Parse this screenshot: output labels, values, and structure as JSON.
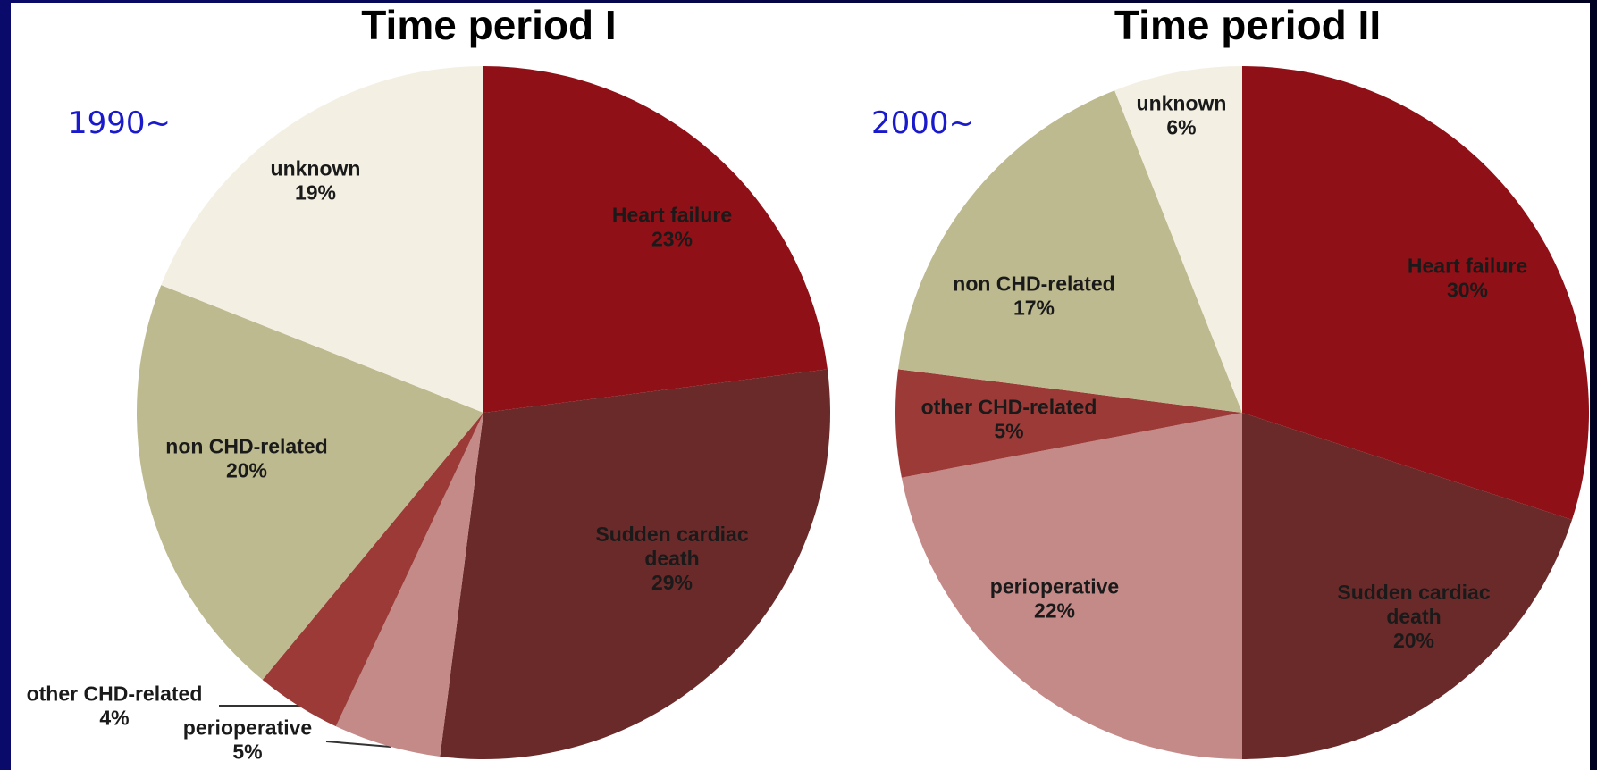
{
  "chart_data": [
    {
      "type": "pie",
      "title": "Time period I",
      "annotation": "1990~",
      "categories": [
        "Heart failure",
        "Sudden cardiac death",
        "perioperative",
        "other CHD-related",
        "non CHD-related",
        "unknown"
      ],
      "values": [
        23,
        29,
        5,
        4,
        20,
        19
      ],
      "value_labels": [
        "23%",
        "29%",
        "5%",
        "4%",
        "20%",
        "19%"
      ],
      "colors": [
        "#8f1016",
        "#6b2a2a",
        "#c48a88",
        "#9b3a37",
        "#bdba8f",
        "#f3f0e3"
      ]
    },
    {
      "type": "pie",
      "title": "Time period II",
      "annotation": "2000~",
      "categories": [
        "Heart failure",
        "Sudden cardiac death",
        "perioperative",
        "other CHD-related",
        "non CHD-related",
        "unknown"
      ],
      "values": [
        30,
        20,
        22,
        5,
        17,
        6
      ],
      "value_labels": [
        "30%",
        "20%",
        "22%",
        "5%",
        "17%",
        "6%"
      ],
      "colors": [
        "#8f1016",
        "#6b2a2a",
        "#c48a88",
        "#9b3a37",
        "#bdba8f",
        "#f3f0e3"
      ]
    }
  ]
}
